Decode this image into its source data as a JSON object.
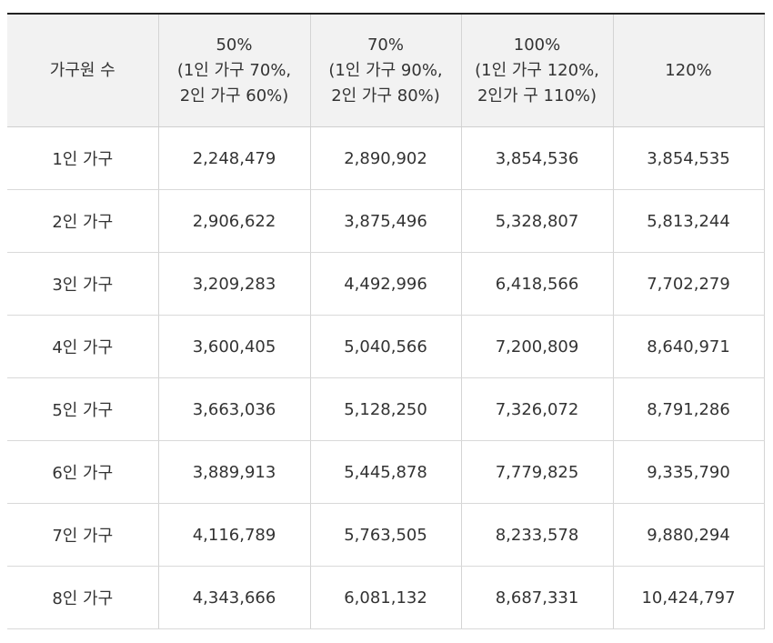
{
  "table": {
    "headers": [
      {
        "lines": [
          "가구원 수"
        ]
      },
      {
        "lines": [
          "50%",
          "(1인 가구 70%,",
          "2인 가구 60%)"
        ]
      },
      {
        "lines": [
          "70%",
          "(1인 가구 90%,",
          "2인 가구 80%)"
        ]
      },
      {
        "lines": [
          "100%",
          "(1인 가구 120%,",
          "2인가 구 110%)"
        ]
      },
      {
        "lines": [
          "120%"
        ]
      }
    ],
    "rows": [
      [
        "1인 가구",
        "2,248,479",
        "2,890,902",
        "3,854,536",
        "3,854,535"
      ],
      [
        "2인 가구",
        "2,906,622",
        "3,875,496",
        "5,328,807",
        "5,813,244"
      ],
      [
        "3인 가구",
        "3,209,283",
        "4,492,996",
        "6,418,566",
        "7,702,279"
      ],
      [
        "4인 가구",
        "3,600,405",
        "5,040,566",
        "7,200,809",
        "8,640,971"
      ],
      [
        "5인 가구",
        "3,663,036",
        "5,128,250",
        "7,326,072",
        "8,791,286"
      ],
      [
        "6인 가구",
        "3,889,913",
        "5,445,878",
        "7,779,825",
        "9,335,790"
      ],
      [
        "7인 가구",
        "4,116,789",
        "5,763,505",
        "8,233,578",
        "9,880,294"
      ],
      [
        "8인 가구",
        "4,343,666",
        "6,081,132",
        "8,687,331",
        "10,424,797"
      ]
    ]
  }
}
